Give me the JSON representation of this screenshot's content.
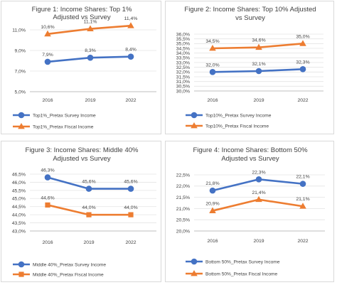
{
  "colors": {
    "survey": "#4472C4",
    "fiscal": "#ED7D31",
    "grid": "#e4e4e4",
    "axis": "#bfbfbf"
  },
  "chart_data": [
    {
      "type": "line",
      "title_lines": [
        "Figure 1: Income Shares: Top 1%",
        "Adjusted vs Survey"
      ],
      "categories": [
        "2016",
        "2019",
        "2022"
      ],
      "ylim": [
        5.0,
        11.0
      ],
      "yticks": [
        "11,0%",
        "9,0%",
        "7,0%",
        "5,0%"
      ],
      "ytick_values": [
        11.0,
        9.0,
        7.0,
        5.0
      ],
      "grid": true,
      "legend_position": "bottom",
      "series": [
        {
          "name": "Top1%_Pretax Survey Income",
          "values": [
            7.9,
            8.3,
            8.4
          ],
          "labels": [
            "7,9%",
            "8,3%",
            "8,4%"
          ],
          "marker": "circle"
        },
        {
          "name": "Top1%_Pretax Fiscal Income",
          "values": [
            10.6,
            11.1,
            11.4
          ],
          "labels": [
            "10,6%",
            "11,1%",
            "11,4%"
          ],
          "marker": "triangle"
        }
      ]
    },
    {
      "type": "line",
      "title_lines": [
        "Figure 2: Income Shares: Top 10% Adjusted",
        "vs Survey"
      ],
      "categories": [
        "2016",
        "2019",
        "2022"
      ],
      "ylim": [
        30.0,
        36.0
      ],
      "yticks": [
        "36,0%",
        "35,5%",
        "35,0%",
        "34,5%",
        "34,0%",
        "33,5%",
        "33,0%",
        "32,5%",
        "32,0%",
        "31,5%",
        "31,0%",
        "30,5%",
        "30,0%"
      ],
      "ytick_values": [
        36.0,
        35.5,
        35.0,
        34.5,
        34.0,
        33.5,
        33.0,
        32.5,
        32.0,
        31.5,
        31.0,
        30.5,
        30.0
      ],
      "grid": true,
      "legend_position": "bottom",
      "series": [
        {
          "name": "Top10%_Pretax Survey Income",
          "values": [
            32.0,
            32.1,
            32.3
          ],
          "labels": [
            "32,0%",
            "32,1%",
            "32,3%"
          ],
          "marker": "circle"
        },
        {
          "name": "Top10%_Pretax Fiscal Income",
          "values": [
            34.5,
            34.6,
            35.0
          ],
          "labels": [
            "34,5%",
            "34,6%",
            "35,0%"
          ],
          "marker": "triangle"
        }
      ]
    },
    {
      "type": "line",
      "title_lines": [
        "Figure 3: Income Shares: Middle 40%",
        "Adjusted vs Survey"
      ],
      "categories": [
        "2016",
        "2019",
        "2022"
      ],
      "ylim": [
        43.0,
        46.5
      ],
      "yticks": [
        "46,5%",
        "46,0%",
        "45,5%",
        "45,0%",
        "44,5%",
        "44,0%",
        "43,5%",
        "43,0%"
      ],
      "ytick_values": [
        46.5,
        46.0,
        45.5,
        45.0,
        44.5,
        44.0,
        43.5,
        43.0
      ],
      "grid": true,
      "legend_position": "bottom",
      "series": [
        {
          "name": "Middle 40%_Pretax Survey Income",
          "values": [
            46.3,
            45.6,
            45.6
          ],
          "labels": [
            "46,3%",
            "45,6%",
            "45,6%"
          ],
          "marker": "circle"
        },
        {
          "name": "Middle 40%_Pretax Fiscal Income",
          "values": [
            44.6,
            44.0,
            44.0
          ],
          "labels": [
            "44,6%",
            "44,0%",
            "44,0%"
          ],
          "marker": "square"
        }
      ]
    },
    {
      "type": "line",
      "title_lines": [
        "Figure 4: Income Shares: Bottom 50%",
        "Adjusted vs Survey"
      ],
      "categories": [
        "2016",
        "2019",
        "2022"
      ],
      "ylim": [
        20.0,
        22.5
      ],
      "yticks": [
        "22,5%",
        "22,0%",
        "21,5%",
        "21,0%",
        "20,5%",
        "20,0%"
      ],
      "ytick_values": [
        22.5,
        22.0,
        21.5,
        21.0,
        20.5,
        20.0
      ],
      "grid": true,
      "legend_position": "bottom",
      "series": [
        {
          "name": "Bottom 50%_Pretax Survey Income",
          "values": [
            21.8,
            22.3,
            22.1
          ],
          "labels": [
            "21,8%",
            "22,3%",
            "22,1%"
          ],
          "marker": "circle"
        },
        {
          "name": "Bottom 50%_Pretax Fiscal Income",
          "values": [
            20.9,
            21.4,
            21.1
          ],
          "labels": [
            "20,9%",
            "21,4%",
            "21,1%"
          ],
          "marker": "triangle"
        }
      ]
    }
  ]
}
